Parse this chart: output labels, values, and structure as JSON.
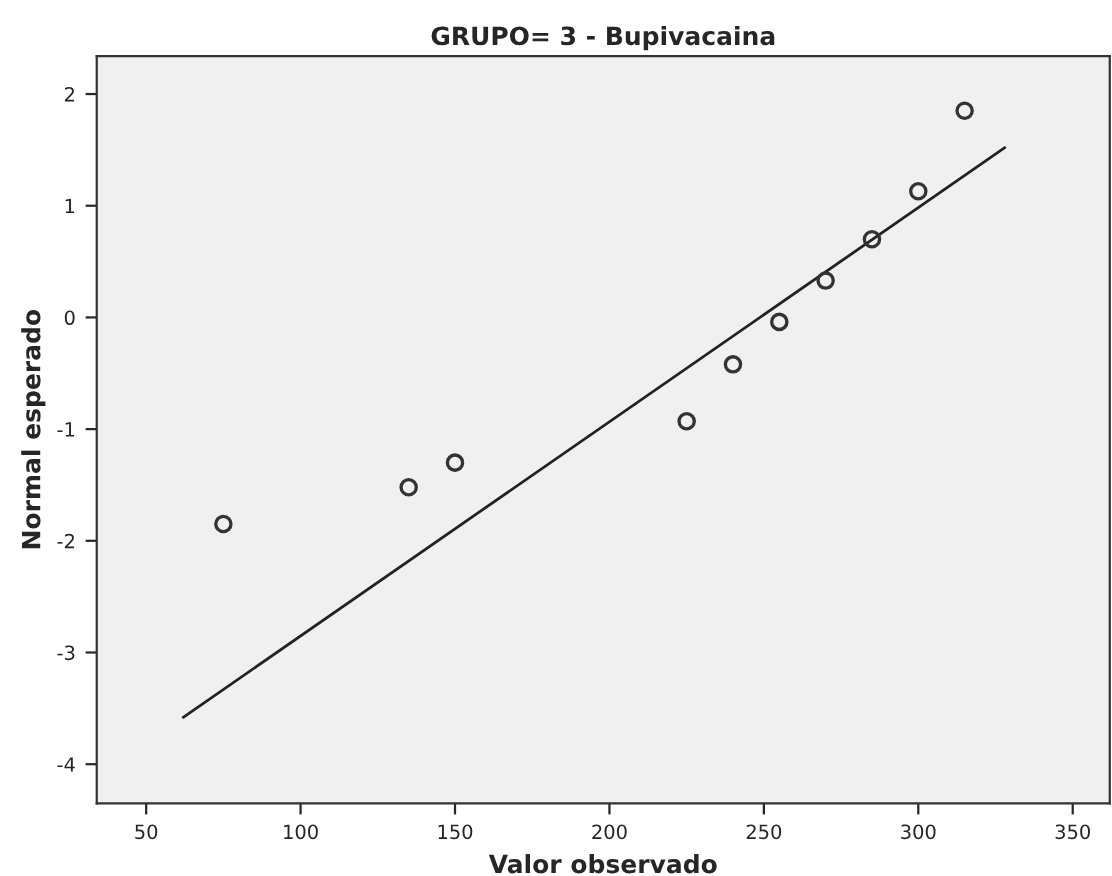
{
  "chart_data": {
    "type": "scatter",
    "title": "GRUPO= 3 - Bupivacaina",
    "xlabel": "Valor observado",
    "ylabel": "Normal esperado",
    "xlim": [
      34,
      362
    ],
    "ylim": [
      -4.35,
      2.34
    ],
    "xticks": [
      50,
      100,
      150,
      200,
      250,
      300,
      350
    ],
    "yticks": [
      -4,
      -3,
      -2,
      -1,
      0,
      1,
      2
    ],
    "grid": false,
    "legend": false,
    "series": [
      {
        "marker": "circle",
        "color": "#333333",
        "x": [
          75,
          135,
          150,
          225,
          240,
          255,
          270,
          285,
          300,
          315
        ],
        "values": [
          -1.85,
          -1.52,
          -1.3,
          -0.93,
          -0.42,
          -0.04,
          0.33,
          0.7,
          1.13,
          1.85
        ]
      },
      {
        "type": "line",
        "marker": "none",
        "color": "#222222",
        "x": [
          62,
          328
        ],
        "values": [
          -3.58,
          1.52
        ]
      }
    ]
  }
}
